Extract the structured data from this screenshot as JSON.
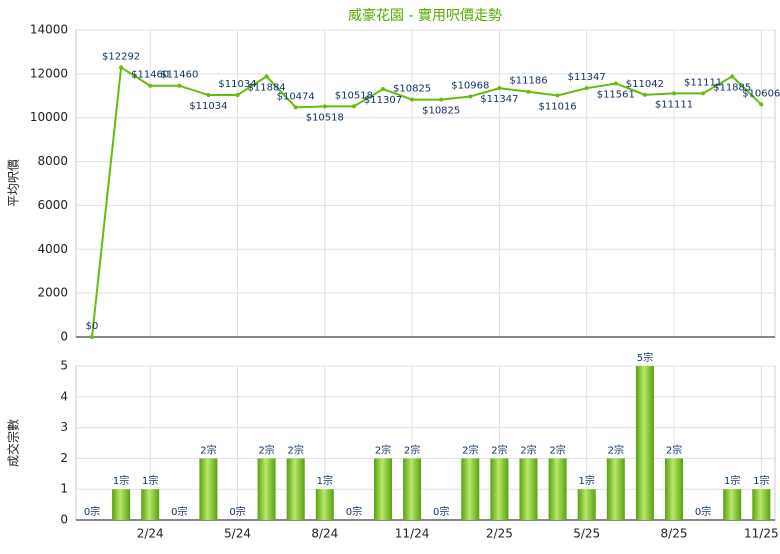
{
  "chart_data": [
    {
      "type": "line",
      "title": "威豪花園 - 實用呎價走勢",
      "y_label": "平均呎價",
      "color": "#66bb11",
      "values": [
        0,
        12292,
        11460,
        11460,
        11034,
        11034,
        11884,
        10474,
        10518,
        10518,
        11307,
        10825,
        10825,
        10968,
        11347,
        11186,
        11016,
        11347,
        11561,
        11042,
        11111,
        11111,
        11885,
        10606
      ],
      "value_labels": [
        "$0",
        "$12292",
        "$11460",
        "$11460",
        "$11034",
        "$11034",
        "$11884",
        "$10474",
        "$10518",
        "$10518",
        "$11307",
        "$10825",
        "$10825",
        "$10968",
        "$11347",
        "$11186",
        "$11016",
        "$11347",
        "$11561",
        "$11042",
        "$11111",
        "$11111",
        "$11885",
        "$10606"
      ],
      "ylim": [
        0,
        14000
      ],
      "yticks": [
        0,
        2000,
        4000,
        6000,
        8000,
        10000,
        12000,
        14000
      ],
      "grid": true
    },
    {
      "type": "bar",
      "y_label": "成交宗數",
      "color": "#77c022",
      "categories": [
        null,
        null,
        "2/24",
        null,
        null,
        "5/24",
        null,
        null,
        "8/24",
        null,
        null,
        "11/24",
        null,
        null,
        "2/25",
        null,
        null,
        "5/25",
        null,
        null,
        "8/25",
        null,
        null,
        "11/25"
      ],
      "values": [
        0,
        1,
        1,
        0,
        2,
        0,
        2,
        2,
        1,
        0,
        2,
        2,
        0,
        2,
        2,
        2,
        2,
        1,
        2,
        5,
        2,
        0,
        1,
        1
      ],
      "value_labels": [
        "0宗",
        "1宗",
        "1宗",
        "0宗",
        "2宗",
        "0宗",
        "2宗",
        "2宗",
        "1宗",
        "0宗",
        "2宗",
        "2宗",
        "0宗",
        "2宗",
        "2宗",
        "2宗",
        "2宗",
        "1宗",
        "2宗",
        "5宗",
        "2宗",
        "0宗",
        "1宗",
        "1宗"
      ],
      "ylim": [
        0,
        5
      ],
      "yticks": [
        0,
        1,
        2,
        3,
        4,
        5
      ],
      "grid": true
    }
  ]
}
